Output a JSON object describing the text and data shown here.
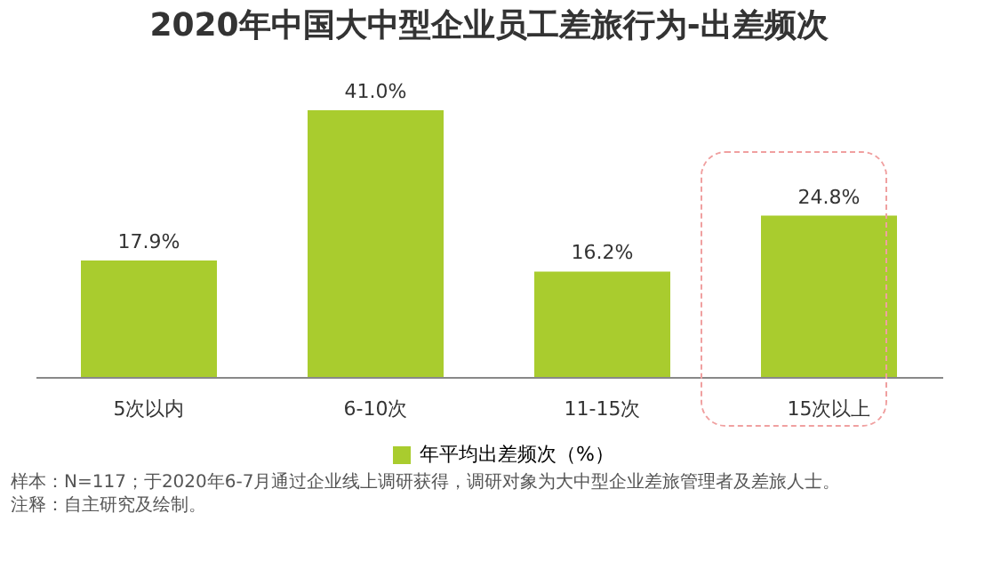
{
  "chart_data": {
    "type": "bar",
    "title": "2020年中国大中型企业员工差旅行为-出差频次",
    "categories": [
      "5次以内",
      "6-10次",
      "11-15次",
      "15次以上"
    ],
    "series": [
      {
        "name": "年平均出差频次（%）",
        "color": "#a9cc2e",
        "values": [
          17.9,
          41.0,
          16.2,
          24.8
        ],
        "value_labels": [
          "17.9%",
          "41.0%",
          "16.2%",
          "24.8%"
        ]
      }
    ],
    "legend": "bottom",
    "grid": false,
    "annotations": [
      "样本：N=117；于2020年6-7月通过企业线上调研获得，调研对象为大中型企业差旅管理者及差旅人士。",
      "注释：自主研究及绘制。"
    ]
  }
}
